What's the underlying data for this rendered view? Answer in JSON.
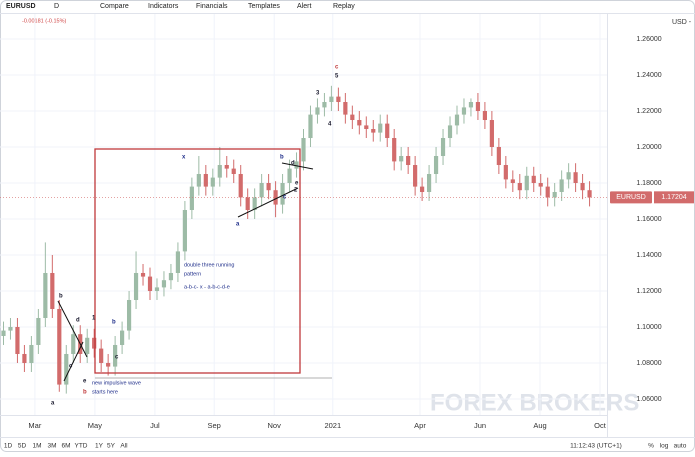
{
  "ui": {
    "symbol": "EURUSD",
    "interval": "D",
    "toolbar": [
      "Compare",
      "Indicators",
      "Financials",
      "Templates",
      "Alert",
      "Replay"
    ],
    "change": "-0.00181 (-0.15%)",
    "currency": "USD -",
    "ranges": [
      "1D",
      "5D",
      "1M",
      "3M",
      "6M",
      "YTD",
      "1Y",
      "5Y",
      "All"
    ],
    "clock": "11:12:43 (UTC+1)",
    "scale_options": [
      "%",
      "log",
      "auto"
    ],
    "watermark": "FOREX BROKERS"
  },
  "chart_data": {
    "type": "candlestick",
    "series_name": "EURUSD",
    "last_price": 1.17204,
    "last_price_label": "1.17204",
    "up_color": "#9dbba6",
    "down_color": "#d26b6b",
    "grid": true,
    "xlim": [
      0,
      87
    ],
    "ylim": [
      1.0511,
      1.2739
    ],
    "xticks": [
      {
        "value": 5.0,
        "label": "Mar"
      },
      {
        "value": 13.6,
        "label": "May"
      },
      {
        "value": 22.2,
        "label": "Jul"
      },
      {
        "value": 30.7,
        "label": "Sep"
      },
      {
        "value": 39.3,
        "label": "Nov"
      },
      {
        "value": 47.7,
        "label": "2021"
      },
      {
        "value": 60.2,
        "label": "Apr"
      },
      {
        "value": 68.8,
        "label": "Jun"
      },
      {
        "value": 77.4,
        "label": "Aug"
      },
      {
        "value": 86,
        "label": "Oct"
      }
    ],
    "yticks": [
      {
        "value": 1.06,
        "label": "1.06000"
      },
      {
        "value": 1.08,
        "label": "1.08000"
      },
      {
        "value": 1.1,
        "label": "1.10000"
      },
      {
        "value": 1.12,
        "label": "1.12000"
      },
      {
        "value": 1.14,
        "label": "1.14000"
      },
      {
        "value": 1.16,
        "label": "1.16000"
      },
      {
        "value": 1.18,
        "label": "1.18000"
      },
      {
        "value": 1.2,
        "label": "1.20000"
      },
      {
        "value": 1.22,
        "label": "1.22000"
      },
      {
        "value": 1.24,
        "label": "1.24000"
      },
      {
        "value": 1.26,
        "label": "1.26000"
      }
    ],
    "x": [
      0.5,
      1.5,
      2.5,
      3.5,
      4.5,
      5.5,
      6.5,
      7.5,
      8.5,
      9.5,
      10.5,
      11.5,
      12.5,
      13.5,
      14.5,
      15.5,
      16.5,
      17.5,
      18.5,
      19.5,
      20.5,
      21.5,
      22.5,
      23.5,
      24.5,
      25.5,
      26.5,
      27.5,
      28.5,
      29.5,
      30.5,
      31.5,
      32.5,
      33.5,
      34.5,
      35.5,
      36.5,
      37.5,
      38.5,
      39.5,
      40.5,
      41.5,
      42.5,
      43.5,
      44.5,
      45.5,
      46.5,
      47.5,
      48.5,
      49.5,
      50.5,
      51.5,
      52.5,
      53.5,
      54.5,
      55.5,
      56.5,
      57.5,
      58.5,
      59.5,
      60.5,
      61.5,
      62.5,
      63.5,
      64.5,
      65.5,
      66.5,
      67.5,
      68.5,
      69.5,
      70.5,
      71.5,
      72.5,
      73.5,
      74.5,
      75.5,
      76.5,
      77.5,
      78.5,
      79.5,
      80.5,
      81.5,
      82.5,
      83.5,
      84.5
    ],
    "open": [
      1.095,
      1.098,
      1.1,
      1.085,
      1.08,
      1.09,
      1.105,
      1.13,
      1.11,
      1.068,
      1.085,
      1.096,
      1.085,
      1.094,
      1.088,
      1.08,
      1.078,
      1.09,
      1.098,
      1.115,
      1.13,
      1.128,
      1.12,
      1.122,
      1.126,
      1.13,
      1.142,
      1.165,
      1.178,
      1.185,
      1.178,
      1.183,
      1.19,
      1.188,
      1.185,
      1.172,
      1.165,
      1.172,
      1.18,
      1.176,
      1.168,
      1.18,
      1.188,
      1.192,
      1.205,
      1.218,
      1.222,
      1.225,
      1.228,
      1.225,
      1.218,
      1.215,
      1.212,
      1.21,
      1.208,
      1.213,
      1.205,
      1.192,
      1.195,
      1.19,
      1.178,
      1.175,
      1.185,
      1.195,
      1.205,
      1.212,
      1.218,
      1.222,
      1.225,
      1.22,
      1.215,
      1.2,
      1.19,
      1.182,
      1.18,
      1.176,
      1.184,
      1.18,
      1.178,
      1.172,
      1.175,
      1.182,
      1.186,
      1.18,
      1.176
    ],
    "high": [
      1.103,
      1.105,
      1.105,
      1.09,
      1.095,
      1.11,
      1.147,
      1.14,
      1.115,
      1.09,
      1.101,
      1.101,
      1.099,
      1.099,
      1.093,
      1.085,
      1.095,
      1.103,
      1.12,
      1.142,
      1.135,
      1.133,
      1.127,
      1.131,
      1.135,
      1.147,
      1.17,
      1.183,
      1.195,
      1.19,
      1.188,
      1.2,
      1.195,
      1.193,
      1.19,
      1.177,
      1.177,
      1.185,
      1.185,
      1.181,
      1.185,
      1.193,
      1.197,
      1.21,
      1.223,
      1.227,
      1.23,
      1.234,
      1.233,
      1.23,
      1.223,
      1.22,
      1.217,
      1.215,
      1.218,
      1.218,
      1.21,
      1.2,
      1.2,
      1.195,
      1.183,
      1.19,
      1.2,
      1.21,
      1.217,
      1.223,
      1.227,
      1.227,
      1.23,
      1.225,
      1.22,
      1.205,
      1.195,
      1.187,
      1.185,
      1.189,
      1.189,
      1.185,
      1.183,
      1.18,
      1.187,
      1.191,
      1.191,
      1.185,
      1.181
    ],
    "low": [
      1.09,
      1.093,
      1.08,
      1.075,
      1.075,
      1.085,
      1.1,
      1.105,
      1.064,
      1.063,
      1.08,
      1.08,
      1.08,
      1.083,
      1.075,
      1.073,
      1.073,
      1.085,
      1.093,
      1.11,
      1.123,
      1.115,
      1.115,
      1.117,
      1.121,
      1.125,
      1.137,
      1.16,
      1.173,
      1.173,
      1.173,
      1.178,
      1.183,
      1.18,
      1.167,
      1.16,
      1.16,
      1.167,
      1.171,
      1.161,
      1.163,
      1.175,
      1.183,
      1.187,
      1.2,
      1.213,
      1.217,
      1.22,
      1.22,
      1.213,
      1.21,
      1.207,
      1.205,
      1.203,
      1.203,
      1.2,
      1.187,
      1.187,
      1.185,
      1.173,
      1.17,
      1.17,
      1.18,
      1.19,
      1.2,
      1.207,
      1.213,
      1.217,
      1.215,
      1.21,
      1.195,
      1.185,
      1.177,
      1.175,
      1.171,
      1.171,
      1.175,
      1.173,
      1.167,
      1.167,
      1.17,
      1.177,
      1.175,
      1.171,
      1.167
    ],
    "close": [
      1.098,
      1.1,
      1.085,
      1.08,
      1.09,
      1.105,
      1.13,
      1.11,
      1.068,
      1.085,
      1.096,
      1.085,
      1.094,
      1.088,
      1.08,
      1.078,
      1.09,
      1.098,
      1.115,
      1.13,
      1.128,
      1.12,
      1.122,
      1.126,
      1.13,
      1.142,
      1.165,
      1.178,
      1.185,
      1.178,
      1.183,
      1.19,
      1.188,
      1.185,
      1.172,
      1.165,
      1.172,
      1.18,
      1.176,
      1.168,
      1.18,
      1.188,
      1.192,
      1.205,
      1.218,
      1.222,
      1.225,
      1.228,
      1.225,
      1.218,
      1.215,
      1.212,
      1.21,
      1.208,
      1.213,
      1.205,
      1.192,
      1.195,
      1.19,
      1.178,
      1.175,
      1.185,
      1.195,
      1.205,
      1.212,
      1.218,
      1.222,
      1.225,
      1.22,
      1.215,
      1.2,
      1.19,
      1.182,
      1.18,
      1.176,
      1.184,
      1.18,
      1.178,
      1.172,
      1.175,
      1.182,
      1.186,
      1.18,
      1.176,
      1.172
    ],
    "annotations": [
      "c",
      "5",
      "3",
      "4",
      "x",
      "b",
      "d",
      "e",
      "2",
      "c",
      "a",
      "double three running",
      "pattern",
      "a-b-c- x - a-b-c-d-e",
      "b",
      "d",
      "1",
      "b",
      "c",
      "c",
      "e",
      "b",
      "a",
      "new impulsive wave",
      "starts here"
    ]
  }
}
